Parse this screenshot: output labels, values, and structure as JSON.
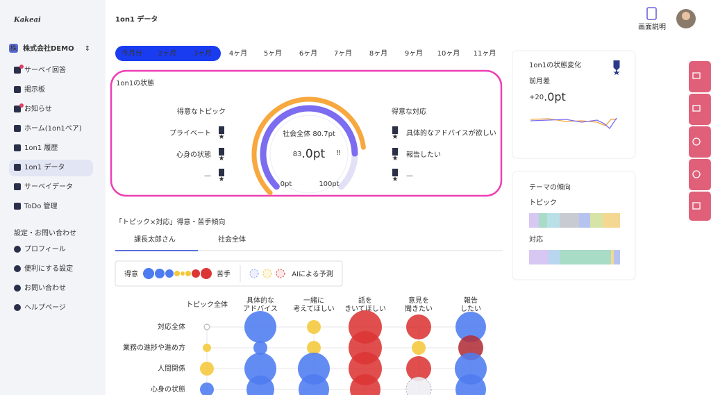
{
  "sidebar": {
    "logo": "Kakeai",
    "company": "株式会社DEMO",
    "company_badge": "株",
    "menu": [
      "サーベイ回答",
      "掲示板",
      "お知らせ",
      "ホーム(1on1ペア)",
      "1on1 履歴",
      "1on1 データ",
      "サーベイデータ",
      "ToDo 管理"
    ],
    "settings_heading": "設定・お問い合わせ",
    "settings": [
      "プロフィール",
      "便利にする設定",
      "お問い合わせ",
      "ヘルプページ"
    ]
  },
  "header": {
    "title": "1on1 データ",
    "help": "画面説明"
  },
  "period_tabs": [
    "今月分",
    "2ヶ月",
    "3ヶ月",
    "4ヶ月",
    "5ヶ月",
    "6ヶ月",
    "7ヶ月",
    "8ヶ月",
    "9ヶ月",
    "10ヶ月",
    "11ヶ月"
  ],
  "state_card": {
    "title": "1on1の状態",
    "topics_heading": "得意なトピック",
    "topics": [
      "プライベート",
      "心身の状態",
      "—"
    ],
    "responses_heading": "得意な対応",
    "responses": [
      "具体的なアドバイスが欲しい",
      "報告したい",
      "—"
    ],
    "ranks": [
      "1",
      "2",
      "3"
    ],
    "gauge": {
      "min": 0,
      "max": 100,
      "min_label": "0pt",
      "max_label": "100pt",
      "value": 83.0,
      "value_int": "83",
      "value_unit": ".0pt",
      "society": 80.7,
      "society_label": "社会全体 80.7pt"
    }
  },
  "change_card": {
    "title": "1on1の状態変化",
    "label": "前月差",
    "value_int": "+20",
    "value_unit": ".0pt"
  },
  "theme_card": {
    "title": "テーマの傾向",
    "topic_label": "トピック",
    "response_label": "対応"
  },
  "matrix": {
    "title": "「トピック×対応」得意・苦手傾向",
    "tabs": [
      "課長太郎さん",
      "社会全体"
    ],
    "legend_good": "得意",
    "legend_bad": "苦手",
    "legend_ai": "AIによる予測",
    "columns": [
      [
        "トピック全体"
      ],
      [
        "具体的な",
        "アドバイス"
      ],
      [
        "一緒に",
        "考えてほしい"
      ],
      [
        "話を",
        "きいてほしい"
      ],
      [
        "意見を",
        "聞きたい"
      ],
      [
        "報告",
        "したい"
      ]
    ],
    "rows": [
      "対応全体",
      "業務の進捗や進め方",
      "人間関係",
      "心身の状態"
    ],
    "sizes": [
      [
        4,
        23,
        10,
        24,
        18,
        22
      ],
      [
        6,
        10,
        10,
        24,
        10,
        18
      ],
      [
        10,
        23,
        23,
        24,
        18,
        23
      ],
      [
        10,
        20,
        22,
        22,
        18,
        22
      ]
    ],
    "colors": [
      [
        "#ffffff",
        "#4d7cf0",
        "#f5c83a",
        "#dc3535",
        "#dc3535",
        "#4d7cf0"
      ],
      [
        "#f5c83a",
        "#4d7cf0",
        "#f5c83a",
        "#dc3535",
        "#f5c83a",
        "#b0303a"
      ],
      [
        "#f5c83a",
        "#4d7cf0",
        "#4d7cf0",
        "#dc3535",
        "#dc3535",
        "#4d7cf0"
      ],
      [
        "#4d7cf0",
        "#4d7cf0",
        "#4d7cf0",
        "#dc3535",
        "#eeeef4",
        "#4d7cf0"
      ]
    ]
  }
}
